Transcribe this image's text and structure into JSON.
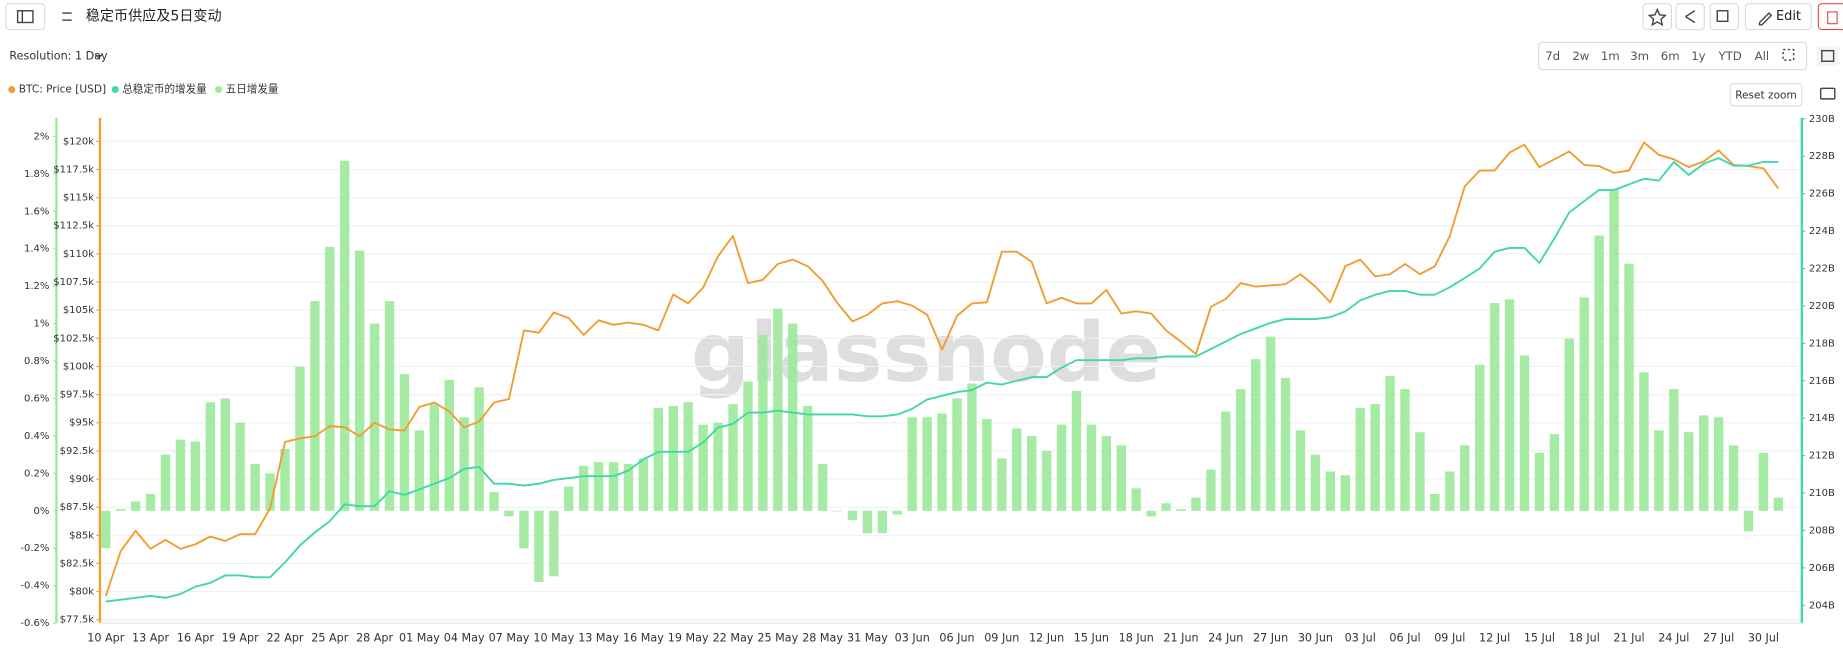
{
  "header": {
    "title": "稳定币供应及5日变动",
    "edit": "Edit"
  },
  "controls": {
    "resolution": "Resolution: 1 Day",
    "ranges": [
      "7d",
      "2w",
      "1m",
      "3m",
      "6m",
      "1y",
      "YTD",
      "All"
    ],
    "reset_zoom": "Reset zoom"
  },
  "chart_data": {
    "type": "bar",
    "watermark": "glassnode",
    "grid": true,
    "categories": [
      "10 Apr",
      null,
      null,
      "13 Apr",
      null,
      null,
      "16 Apr",
      null,
      null,
      "19 Apr",
      null,
      null,
      "22 Apr",
      null,
      null,
      "25 Apr",
      null,
      null,
      "28 Apr",
      null,
      null,
      "01 May",
      null,
      null,
      "04 May",
      null,
      null,
      "07 May",
      null,
      null,
      "10 May",
      null,
      null,
      "13 May",
      null,
      null,
      "16 May",
      null,
      null,
      "19 May",
      null,
      null,
      "22 May",
      null,
      null,
      "25 May",
      null,
      null,
      "28 May",
      null,
      null,
      "31 May",
      null,
      null,
      "03 Jun",
      null,
      null,
      "06 Jun",
      null,
      null,
      "09 Jun",
      null,
      null,
      "12 Jun",
      null,
      null,
      "15 Jun",
      null,
      null,
      "18 Jun",
      null,
      null,
      "21 Jun",
      null,
      null,
      "24 Jun",
      null,
      null,
      "27 Jun",
      null,
      null,
      "30 Jun",
      null,
      null,
      "03 Jul",
      null,
      null,
      "06 Jul",
      null,
      null,
      "09 Jul",
      null,
      null,
      "12 Jul",
      null,
      null,
      "15 Jul",
      null,
      null,
      "18 Jul",
      null,
      null,
      "21 Jul",
      null,
      null,
      "24 Jul",
      null,
      null,
      "27 Jul",
      null,
      null,
      "30 Jul",
      null
    ],
    "ylim": [
      -0.6,
      2.1
    ],
    "yticks": [
      {
        "value": -0.6,
        "label": "-0.6%"
      },
      {
        "value": -0.4,
        "label": "-0.4%"
      },
      {
        "value": -0.2,
        "label": "-0.2%"
      },
      {
        "value": 0,
        "label": "0%"
      },
      {
        "value": 0.2,
        "label": "0.2%"
      },
      {
        "value": 0.4,
        "label": "0.4%"
      },
      {
        "value": 0.6,
        "label": "0.6%"
      },
      {
        "value": 0.8,
        "label": "0.8%"
      },
      {
        "value": 1,
        "label": "1%"
      },
      {
        "value": 1.2,
        "label": "1.2%"
      },
      {
        "value": 1.4,
        "label": "1.4%"
      },
      {
        "value": 1.6,
        "label": "1.6%"
      },
      {
        "value": 1.8,
        "label": "1.8%"
      },
      {
        "value": 2,
        "label": "2%"
      }
    ],
    "y3lim": [
      77200,
      122100
    ],
    "y3ticks": [
      {
        "value": 77500,
        "label": "$77.5k"
      },
      {
        "value": 80000,
        "label": "$80k"
      },
      {
        "value": 82500,
        "label": "$82.5k"
      },
      {
        "value": 85000,
        "label": "$85k"
      },
      {
        "value": 87500,
        "label": "$87.5k"
      },
      {
        "value": 90000,
        "label": "$90k"
      },
      {
        "value": 92500,
        "label": "$92.5k"
      },
      {
        "value": 95000,
        "label": "$95k"
      },
      {
        "value": 97500,
        "label": "$97.5k"
      },
      {
        "value": 100000,
        "label": "$100k"
      },
      {
        "value": 102500,
        "label": "$102.5k"
      },
      {
        "value": 105000,
        "label": "$105k"
      },
      {
        "value": 107500,
        "label": "$107.5k"
      },
      {
        "value": 110000,
        "label": "$110k"
      },
      {
        "value": 112500,
        "label": "$112.5k"
      },
      {
        "value": 115000,
        "label": "$115k"
      },
      {
        "value": 117500,
        "label": "$117.5k"
      },
      {
        "value": 120000,
        "label": "$120k"
      }
    ],
    "y2lim": [
      203.05,
      230.06
    ],
    "y2ticks": [
      {
        "value": 204,
        "label": "204B"
      },
      {
        "value": 206,
        "label": "206B"
      },
      {
        "value": 208,
        "label": "208B"
      },
      {
        "value": 210,
        "label": "210B"
      },
      {
        "value": 212,
        "label": "212B"
      },
      {
        "value": 214,
        "label": "214B"
      },
      {
        "value": 216,
        "label": "216B"
      },
      {
        "value": 218,
        "label": "218B"
      },
      {
        "value": 220,
        "label": "220B"
      },
      {
        "value": 222,
        "label": "222B"
      },
      {
        "value": 224,
        "label": "224B"
      },
      {
        "value": 226,
        "label": "226B"
      },
      {
        "value": 228,
        "label": "228B"
      },
      {
        "value": 230,
        "label": "230B"
      }
    ],
    "series": [
      {
        "name": "BTC: Price [USD]",
        "type": "line",
        "axis": "y3",
        "color": "#f29d2f",
        "values": [
          79600,
          83600,
          85400,
          83800,
          84600,
          83800,
          84200,
          84900,
          84500,
          85100,
          85100,
          87400,
          93300,
          93600,
          93800,
          94700,
          94600,
          93800,
          95000,
          94400,
          94300,
          96400,
          96800,
          96000,
          94600,
          95100,
          96800,
          97100,
          103200,
          103000,
          104800,
          104300,
          102800,
          104100,
          103700,
          103900,
          103700,
          103200,
          106400,
          105600,
          107000,
          109800,
          111600,
          107400,
          107700,
          109100,
          109500,
          108900,
          107600,
          105600,
          104000,
          104600,
          105600,
          105800,
          105400,
          104600,
          101500,
          104500,
          105600,
          105700,
          110200,
          110200,
          109300,
          105600,
          106100,
          105600,
          105600,
          106800,
          104700,
          104900,
          104700,
          103200,
          102200,
          101100,
          105300,
          106000,
          107400,
          107100,
          107200,
          107300,
          108200,
          107100,
          105700,
          108900,
          109500,
          108000,
          108200,
          109100,
          108200,
          108900,
          111600,
          116000,
          117400,
          117400,
          119000,
          119700,
          117700,
          118400,
          119100,
          117900,
          117800,
          117200,
          117400,
          119900,
          118800,
          118400,
          117700,
          118200,
          119200,
          117900,
          117800,
          117600,
          115800
        ]
      },
      {
        "name": "总稳定币的增发量",
        "type": "line",
        "axis": "y2",
        "color": "#3fd8a6",
        "values": [
          204.2,
          204.3,
          204.4,
          204.5,
          204.4,
          204.6,
          205.0,
          205.2,
          205.6,
          205.6,
          205.5,
          205.5,
          206.3,
          207.2,
          207.9,
          208.5,
          209.4,
          209.3,
          209.3,
          210.1,
          209.9,
          210.2,
          210.5,
          210.8,
          211.3,
          211.4,
          210.5,
          210.5,
          210.4,
          210.5,
          210.7,
          210.8,
          210.9,
          210.9,
          210.9,
          211.2,
          211.8,
          212.2,
          212.2,
          212.2,
          212.7,
          213.5,
          213.7,
          214.3,
          214.3,
          214.4,
          214.3,
          214.2,
          214.2,
          214.2,
          214.2,
          214.1,
          214.1,
          214.2,
          214.5,
          215.0,
          215.2,
          215.4,
          215.5,
          215.9,
          215.8,
          216.0,
          216.2,
          216.2,
          216.7,
          217.1,
          217.1,
          217.1,
          217.1,
          217.2,
          217.2,
          217.3,
          217.3,
          217.3,
          217.7,
          218.1,
          218.5,
          218.8,
          219.1,
          219.3,
          219.3,
          219.3,
          219.4,
          219.7,
          220.3,
          220.6,
          220.8,
          220.8,
          220.6,
          220.6,
          221.0,
          221.5,
          222.0,
          222.9,
          223.1,
          223.1,
          222.3,
          223.6,
          225.0,
          225.6,
          226.2,
          226.2,
          226.5,
          226.8,
          226.7,
          227.7,
          227.0,
          227.6,
          227.9,
          227.5,
          227.5,
          227.7,
          227.7
        ]
      },
      {
        "name": "五日增发量",
        "type": "bar",
        "axis": "y",
        "color": "#9ce99a",
        "values": [
          -0.2,
          0.01,
          0.05,
          0.09,
          0.3,
          0.38,
          0.37,
          0.58,
          0.6,
          0.47,
          0.25,
          0.2,
          0.33,
          0.77,
          1.12,
          1.41,
          1.87,
          1.39,
          1.0,
          1.12,
          0.73,
          0.43,
          0.57,
          0.7,
          0.5,
          0.66,
          0.1,
          -0.03,
          -0.2,
          -0.38,
          -0.35,
          0.13,
          0.24,
          0.26,
          0.26,
          0.25,
          0.28,
          0.55,
          0.56,
          0.58,
          0.46,
          0.47,
          0.57,
          0.69,
          0.94,
          1.08,
          1.0,
          0.56,
          0.25,
          0.0,
          -0.05,
          -0.12,
          -0.12,
          -0.02,
          0.5,
          0.5,
          0.52,
          0.6,
          0.68,
          0.49,
          0.28,
          0.44,
          0.4,
          0.32,
          0.46,
          0.64,
          0.46,
          0.4,
          0.35,
          0.12,
          -0.03,
          0.04,
          0.01,
          0.07,
          0.22,
          0.53,
          0.65,
          0.81,
          0.93,
          0.71,
          0.43,
          0.3,
          0.21,
          0.19,
          0.55,
          0.57,
          0.72,
          0.65,
          0.42,
          0.09,
          0.21,
          0.35,
          0.78,
          1.11,
          1.13,
          0.83,
          0.31,
          0.41,
          0.92,
          1.14,
          1.47,
          1.72,
          1.32,
          0.74,
          0.43,
          0.65,
          0.42,
          0.51,
          0.5,
          0.35,
          -0.11,
          0.31,
          0.07
        ]
      }
    ]
  }
}
